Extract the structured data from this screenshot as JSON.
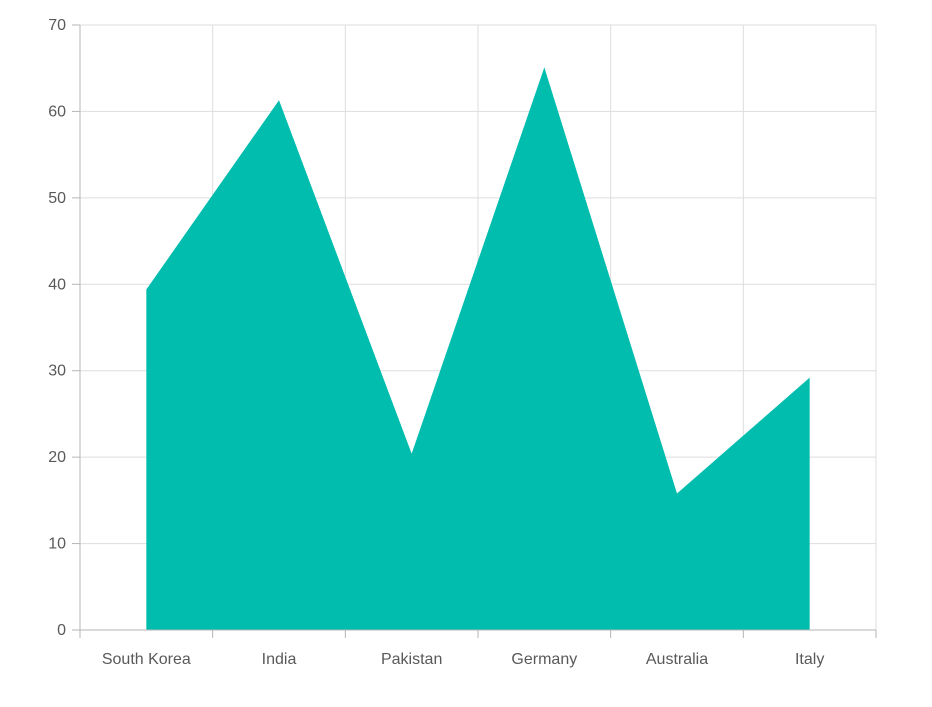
{
  "chart_data": {
    "type": "area",
    "categories": [
      "South Korea",
      "India",
      "Pakistan",
      "Germany",
      "Australia",
      "Italy"
    ],
    "series": [
      {
        "values": [
          39.4,
          61.3,
          20.4,
          65.1,
          15.8,
          29.2
        ],
        "color": "#00bdae"
      }
    ],
    "y_ticks": [
      "0",
      "10",
      "20",
      "30",
      "40",
      "50",
      "60",
      "70"
    ],
    "ylim": [
      0,
      70
    ],
    "grid": true,
    "title": "",
    "xlabel": "",
    "ylabel": ""
  },
  "colors": {
    "area_fill": "#00bdae",
    "gridline": "#dddddd",
    "axis_line": "#b5b5b5",
    "tick_label": "#595959"
  }
}
